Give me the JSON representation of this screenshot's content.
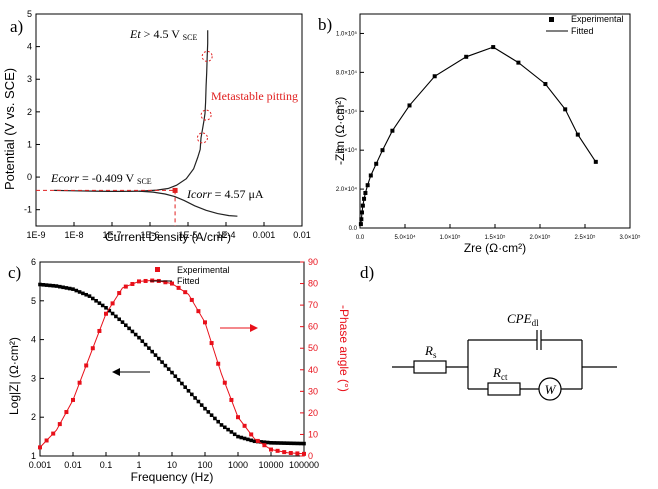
{
  "panels": {
    "a": "a)",
    "b": "b)",
    "c": "c)",
    "d": "d)"
  },
  "chart_data": [
    {
      "type": "line",
      "panel": "a",
      "xlabel": "Current Density (A/cm²)",
      "ylabel": "Potential (V vs. SCE)",
      "xscale": "log",
      "xlim": [
        1e-09,
        0.01
      ],
      "ylim": [
        -1.5,
        5
      ],
      "xtick_labels": [
        "1E-9",
        "1E-8",
        "1E-7",
        "1E-6",
        "1E-5",
        "1E-4",
        "0.001",
        "0.01"
      ],
      "ytick_labels": [
        "-1",
        "0",
        "1",
        "2",
        "3",
        "4",
        "5"
      ],
      "line_color": "#222222",
      "highlight_color": "#e02020",
      "curve": {
        "x": [
          3e-09,
          1e-08,
          3e-08,
          8e-08,
          2e-07,
          6e-07,
          1.5e-06,
          3e-06,
          5e-06,
          9e-06,
          1.4e-05,
          1.8e-05,
          2.1e-05,
          2.2e-05,
          2.4e-05,
          2.6e-05,
          2.8e-05,
          2.9e-05,
          3e-05,
          3.1e-05,
          3.2e-05,
          3.3e-05,
          3.3e-05
        ],
        "y": [
          -0.41,
          -0.42,
          -0.43,
          -0.44,
          -0.44,
          -0.43,
          -0.4,
          -0.35,
          -0.25,
          -0.05,
          0.25,
          0.6,
          0.85,
          1.2,
          1.45,
          1.7,
          1.95,
          2.3,
          2.8,
          3.2,
          3.7,
          4.1,
          4.5
        ]
      },
      "cathodic": {
        "x": [
          5e-07,
          1.2e-06,
          2.5e-06,
          4.5e-06,
          8e-06,
          1.5e-05,
          3e-05,
          6e-05,
          0.00012,
          0.0002
        ],
        "y": [
          -0.43,
          -0.46,
          -0.52,
          -0.6,
          -0.72,
          -0.88,
          -1.02,
          -1.12,
          -1.18,
          -1.2
        ]
      },
      "pits": [
        {
          "x": 3.2e-05,
          "y": 3.7
        },
        {
          "x": 3e-05,
          "y": 1.9
        },
        {
          "x": 2.4e-05,
          "y": 1.2
        }
      ],
      "ecorr": -0.409,
      "icorr": 4.57e-06,
      "annotations": {
        "et_label": "Et",
        "et_value": "> 4.5 V",
        "et_sub": "SCE",
        "ecorr_label": "Ecorr",
        "ecorr_value": "= -0.409 V",
        "ecorr_sub": "SCE",
        "icorr_label": "Icorr",
        "icorr_value": "= 4.57 μA",
        "metastable": "Metastable pitting"
      }
    },
    {
      "type": "scatter",
      "panel": "b",
      "xlabel": "Zre (Ω·cm²)",
      "ylabel": "-Zim (Ω·cm²)",
      "xlim": [
        0,
        300000
      ],
      "ylim": [
        0,
        110000
      ],
      "xtick_labels": [
        "0.0",
        "5.0×10⁴",
        "1.0×10⁵",
        "1.5×10⁵",
        "2.0×10⁵",
        "2.5×10⁵",
        "3.0×10⁵"
      ],
      "ytick_labels": [
        "0.0",
        "2.0×10⁴",
        "4.0×10⁴",
        "6.0×10⁴",
        "8.0×10⁴",
        "1.0×10⁵"
      ],
      "legend": [
        "Experimental",
        "Fitted"
      ],
      "legend_position": "top-right",
      "series": [
        {
          "name": "Experimental",
          "x": [
            1000,
            1500,
            2200,
            3200,
            4500,
            6000,
            8500,
            12000,
            18000,
            25000,
            36000,
            55000,
            83000,
            118000,
            148000,
            176000,
            206000,
            228000,
            242000,
            262000
          ],
          "y": [
            2000,
            4500,
            8000,
            11500,
            15000,
            18000,
            22000,
            27000,
            33000,
            40000,
            50000,
            63000,
            78000,
            88000,
            93000,
            85000,
            74000,
            61000,
            48000,
            34000
          ]
        },
        {
          "name": "Fitted",
          "x": [
            1000,
            1500,
            2200,
            3200,
            4500,
            6000,
            8500,
            12000,
            18000,
            25000,
            36000,
            55000,
            83000,
            118000,
            148000,
            176000,
            206000,
            228000,
            242000,
            262000
          ],
          "y": [
            2000,
            4500,
            8000,
            11500,
            15000,
            18000,
            22000,
            27000,
            33000,
            40000,
            50000,
            63000,
            78000,
            88000,
            93000,
            85000,
            74000,
            61000,
            48000,
            34000
          ]
        }
      ]
    },
    {
      "type": "line",
      "panel": "c",
      "xlabel": "Frequency (Hz)",
      "ylabel": "Log|Z| (Ω·cm²)",
      "ylabel_right": "-Phase angle (°)",
      "xscale": "log",
      "xlim": [
        0.001,
        100000
      ],
      "ylim": [
        1,
        6
      ],
      "ylim_right": [
        0,
        90
      ],
      "xtick_labels": [
        "0.001",
        "0.01",
        "0.1",
        "1",
        "10",
        "100",
        "1000",
        "10000",
        "100000"
      ],
      "ytick_labels": [
        "1",
        "2",
        "3",
        "4",
        "5",
        "6"
      ],
      "ytick_labels_right": [
        "0",
        "10",
        "20",
        "30",
        "40",
        "50",
        "60",
        "70",
        "80",
        "90"
      ],
      "legend": [
        "Experimental",
        "Fitted"
      ],
      "legend_position": "top-center",
      "impedance_color": "#000000",
      "phase_color": "#e8101a",
      "modulus": {
        "logf": [
          -3,
          -2.5,
          -2,
          -1.5,
          -1,
          -0.5,
          0,
          0.5,
          1,
          1.5,
          2,
          2.5,
          3,
          3.5,
          4,
          4.5,
          5
        ],
        "logz": [
          5.42,
          5.38,
          5.3,
          5.12,
          4.82,
          4.45,
          4.05,
          3.6,
          3.15,
          2.68,
          2.22,
          1.8,
          1.5,
          1.38,
          1.34,
          1.33,
          1.32
        ]
      },
      "phase": {
        "logf": [
          -3,
          -2.5,
          -2,
          -1.5,
          -1,
          -0.5,
          0,
          0.5,
          1,
          1.5,
          2,
          2.5,
          3,
          3.5,
          4,
          4.5,
          5
        ],
        "deg": [
          4,
          12,
          26,
          46,
          66,
          78,
          81,
          81.5,
          80,
          75,
          62,
          38,
          18,
          8,
          3,
          1.5,
          1
        ]
      }
    }
  ],
  "circuit": {
    "rs": "R",
    "rs_sub": "s",
    "rct": "R",
    "rct_sub": "ct",
    "cpe": "CPE",
    "cpe_sub": "dl",
    "w": "W"
  }
}
